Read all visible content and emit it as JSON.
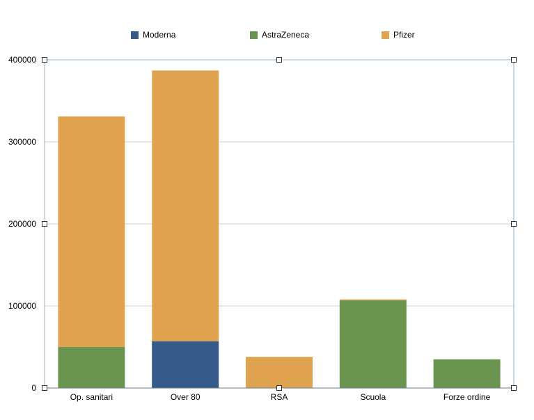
{
  "chart_data": {
    "type": "bar",
    "stacked": true,
    "categories": [
      "Op. sanitari",
      "Over 80",
      "RSA",
      "Scuola",
      "Forze ordine"
    ],
    "series": [
      {
        "name": "Moderna",
        "color": "#365a8a",
        "values": [
          0,
          57000,
          0,
          0,
          0
        ]
      },
      {
        "name": "AstraZeneca",
        "color": "#6a9550",
        "values": [
          50000,
          0,
          0,
          107000,
          35000
        ]
      },
      {
        "name": "Pfizer",
        "color": "#e0a450",
        "values": [
          281000,
          330000,
          38000,
          1000,
          0
        ]
      }
    ],
    "ylim": [
      0,
      400000
    ],
    "yticks": [
      "0",
      "100000",
      "200000",
      "300000",
      "400000"
    ],
    "grid": true,
    "legend": "top"
  }
}
